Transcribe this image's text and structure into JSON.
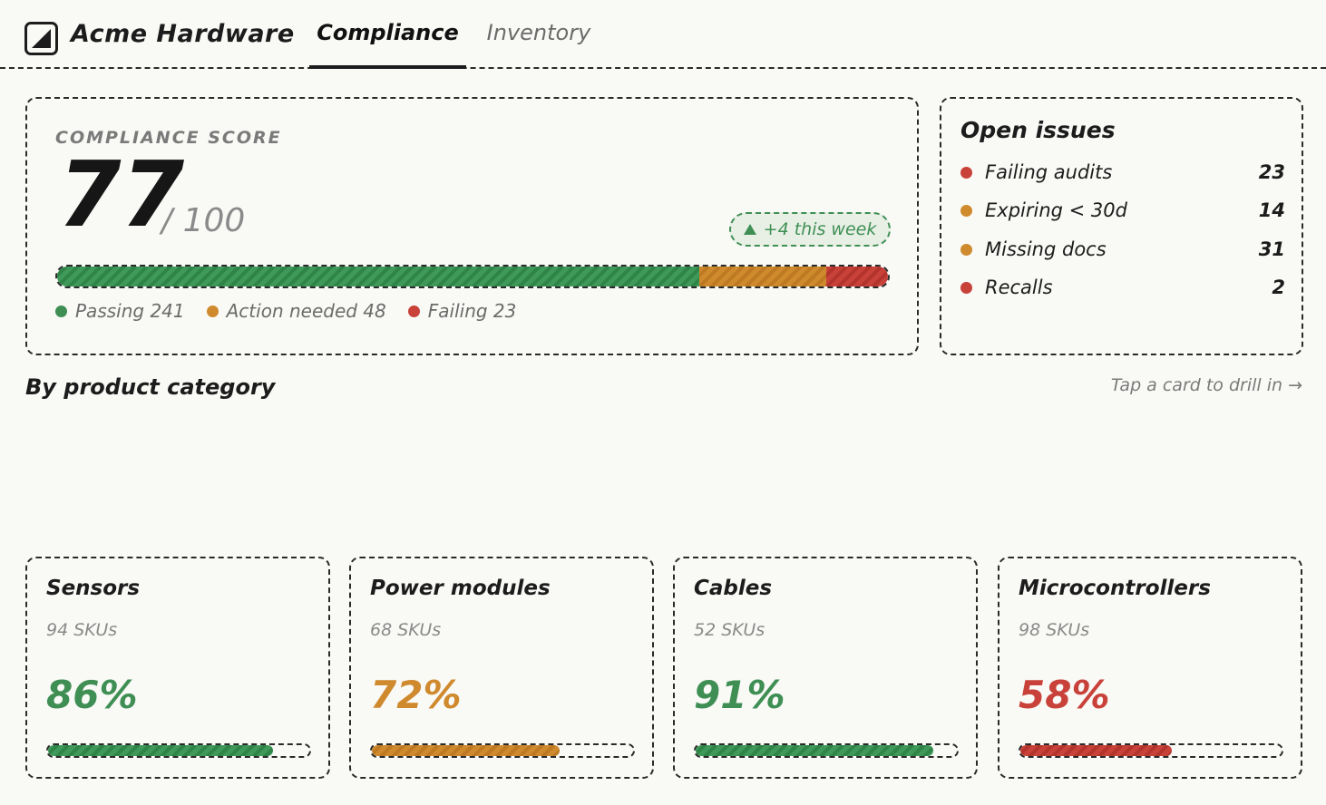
{
  "header": {
    "brand": "Acme Hardware",
    "tabs": [
      {
        "label": "Compliance",
        "active": true
      },
      {
        "label": "Inventory",
        "active": false
      }
    ]
  },
  "score": {
    "label": "COMPLIANCE SCORE",
    "value": "77",
    "max": "/ 100",
    "trend": "+4 this week",
    "breakdown": [
      {
        "label": "Passing 241",
        "count": 241,
        "color": "#3f9a59"
      },
      {
        "label": "Action needed 48",
        "count": 48,
        "color": "#d08a2e"
      },
      {
        "label": "Failing 23",
        "count": 23,
        "color": "#c9423a"
      }
    ]
  },
  "issues": {
    "title": "Open issues",
    "items": [
      {
        "label": "Failing audits",
        "count": "23",
        "color": "#c9423a"
      },
      {
        "label": "Expiring < 30d",
        "count": "14",
        "color": "#d08a2e"
      },
      {
        "label": "Missing docs",
        "count": "31",
        "color": "#d08a2e"
      },
      {
        "label": "Recalls",
        "count": "2",
        "color": "#c9423a"
      }
    ]
  },
  "section": {
    "title": "By product category",
    "hint": "Tap a card to drill in →"
  },
  "categories": [
    {
      "name": "Sensors",
      "skus": "94 SKUs",
      "pct": "86%",
      "fraction": 0.86,
      "color": "#3f8f54",
      "stripe": "green"
    },
    {
      "name": "Power modules",
      "skus": "68 SKUs",
      "pct": "72%",
      "fraction": 0.72,
      "color": "#d08a2e",
      "stripe": "orange"
    },
    {
      "name": "Cables",
      "skus": "52 SKUs",
      "pct": "91%",
      "fraction": 0.91,
      "color": "#3f8f54",
      "stripe": "green"
    },
    {
      "name": "Microcontrollers",
      "skus": "98 SKUs",
      "pct": "58%",
      "fraction": 0.58,
      "color": "#c9423a",
      "stripe": "red"
    }
  ]
}
